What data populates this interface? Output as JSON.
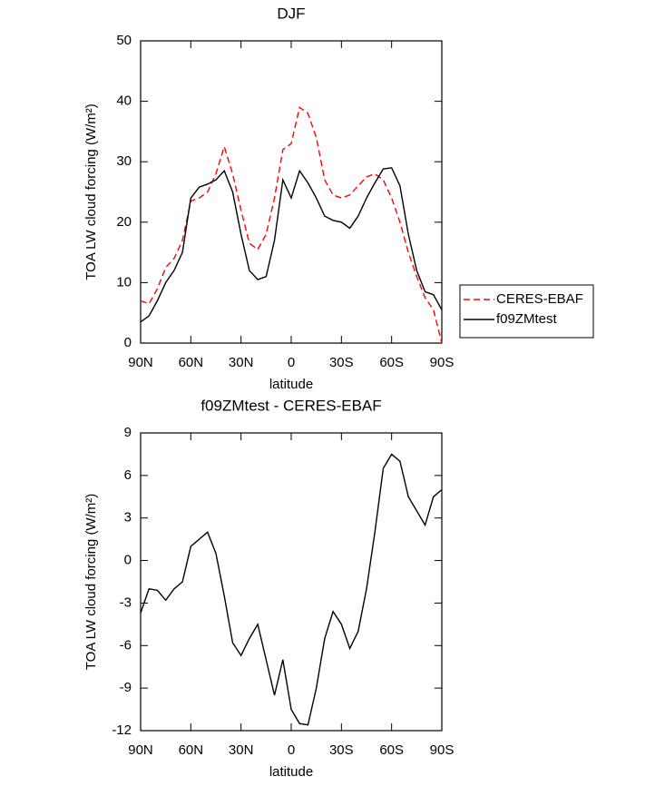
{
  "chart_data": [
    {
      "type": "line",
      "title": "DJF",
      "xlabel": "latitude",
      "ylabel": "TOA LW cloud forcing (W/m²)",
      "x": [
        90,
        85,
        80,
        75,
        70,
        65,
        60,
        55,
        50,
        45,
        40,
        35,
        30,
        25,
        20,
        15,
        10,
        5,
        0,
        -5,
        -10,
        -15,
        -20,
        -25,
        -30,
        -35,
        -40,
        -45,
        -50,
        -55,
        -60,
        -65,
        -70,
        -75,
        -80,
        -85,
        -90
      ],
      "xlim": [
        90,
        -90
      ],
      "xticks": [
        {
          "value": 90,
          "label": "90N"
        },
        {
          "value": 60,
          "label": "60N"
        },
        {
          "value": 30,
          "label": "30N"
        },
        0,
        {
          "value": -30,
          "label": "30S"
        },
        {
          "value": -60,
          "label": "60S"
        },
        {
          "value": -90,
          "label": "90S"
        }
      ],
      "ylim": [
        0,
        50
      ],
      "yticks": [
        0,
        10,
        20,
        30,
        40,
        50
      ],
      "legend": "right",
      "series": [
        {
          "name": "CERES-EBAF",
          "color": "#ff0000",
          "dashed": true,
          "values": [
            7,
            6.5,
            9,
            12.5,
            14,
            17,
            23.5,
            24,
            25,
            28,
            32.5,
            28,
            22,
            16.5,
            15.5,
            18,
            24,
            32,
            33,
            39,
            38,
            34,
            27,
            24.5,
            24,
            24.5,
            26,
            27.5,
            28,
            27,
            24,
            20,
            15,
            11,
            7.5,
            5.5,
            0
          ]
        },
        {
          "name": "f09ZMtest",
          "color": "#000000",
          "dashed": false,
          "values": [
            3.5,
            4.5,
            7,
            10,
            12,
            15,
            24,
            25.8,
            26.3,
            27,
            28.5,
            25,
            18,
            12,
            10.5,
            11,
            17,
            27,
            24,
            28.5,
            26.5,
            24,
            21,
            20.3,
            20,
            19,
            21,
            24,
            26.5,
            28.8,
            29,
            26,
            18,
            12,
            8.5,
            8,
            5.5
          ]
        }
      ]
    },
    {
      "type": "line",
      "title": "f09ZMtest - CERES-EBAF",
      "xlabel": "latitude",
      "ylabel": "TOA LW cloud forcing (W/m²)",
      "x": [
        90,
        85,
        80,
        75,
        70,
        65,
        60,
        55,
        50,
        45,
        40,
        35,
        30,
        25,
        20,
        15,
        10,
        5,
        0,
        -5,
        -10,
        -15,
        -20,
        -25,
        -30,
        -35,
        -40,
        -45,
        -50,
        -55,
        -60,
        -65,
        -70,
        -75,
        -80,
        -85,
        -90
      ],
      "xlim": [
        90,
        -90
      ],
      "xticks": [
        {
          "value": 90,
          "label": "90N"
        },
        {
          "value": 60,
          "label": "60N"
        },
        {
          "value": 30,
          "label": "30N"
        },
        0,
        {
          "value": -30,
          "label": "30S"
        },
        {
          "value": -60,
          "label": "60S"
        },
        {
          "value": -90,
          "label": "90S"
        }
      ],
      "ylim": [
        -12,
        9
      ],
      "yticks": [
        -12,
        -9,
        -6,
        -3,
        0,
        3,
        6,
        9
      ],
      "series": [
        {
          "color": "#000000",
          "dashed": false,
          "values": [
            -3.7,
            -2,
            -2.1,
            -2.8,
            -2,
            -1.5,
            1,
            1.5,
            2,
            0.5,
            -2.5,
            -5.8,
            -6.7,
            -5.5,
            -4.5,
            -7,
            -9.5,
            -7,
            -10.5,
            -11.5,
            -11.6,
            -9,
            -5.5,
            -3.6,
            -4.5,
            -6.2,
            -5,
            -2,
            2,
            6.5,
            7.5,
            7,
            4.5,
            3.5,
            2.5,
            4.5,
            5
          ]
        }
      ]
    }
  ]
}
